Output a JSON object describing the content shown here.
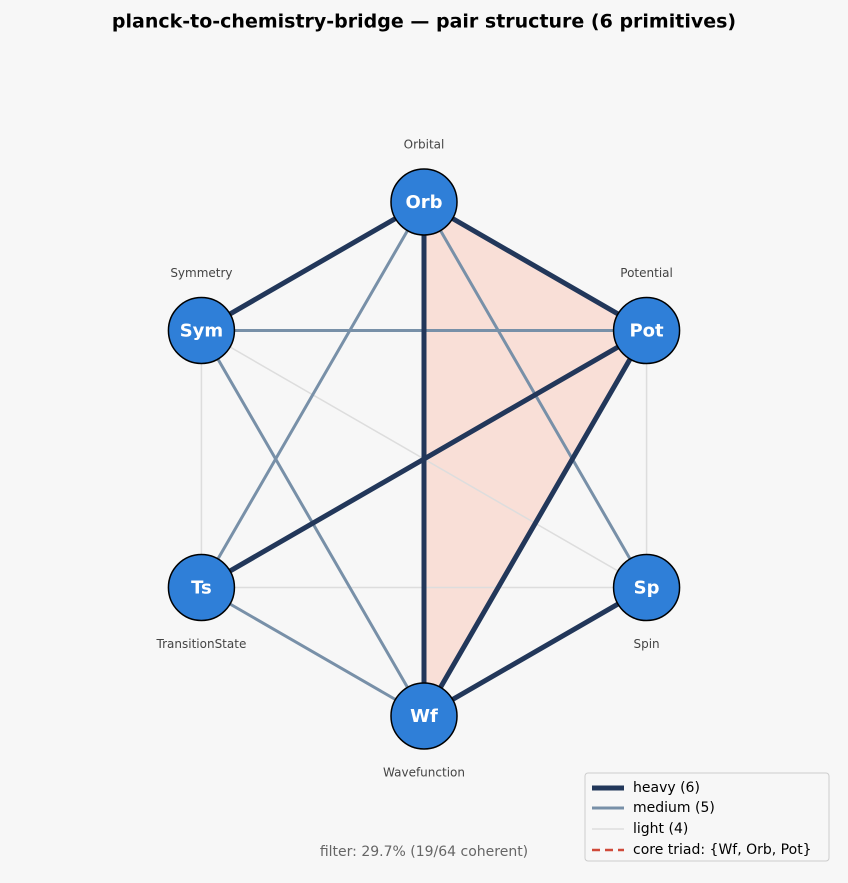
{
  "title": "planck-to-chemistry-bridge — pair structure  (6 primitives)",
  "nodes": [
    {
      "abbr": "Orb",
      "label": "Orbital"
    },
    {
      "abbr": "Pot",
      "label": "Potential"
    },
    {
      "abbr": "Sp",
      "label": "Spin"
    },
    {
      "abbr": "Wf",
      "label": "Wavefunction"
    },
    {
      "abbr": "Ts",
      "label": "TransitionState"
    },
    {
      "abbr": "Sym",
      "label": "Symmetry"
    }
  ],
  "edges": [
    {
      "a": "Sym",
      "b": "Ts",
      "weight": "light"
    },
    {
      "a": "Pot",
      "b": "Sp",
      "weight": "light"
    },
    {
      "a": "Sym",
      "b": "Sp",
      "weight": "light"
    },
    {
      "a": "Ts",
      "b": "Sp",
      "weight": "light"
    },
    {
      "a": "Orb",
      "b": "Ts",
      "weight": "medium"
    },
    {
      "a": "Orb",
      "b": "Sp",
      "weight": "medium"
    },
    {
      "a": "Sym",
      "b": "Pot",
      "weight": "medium"
    },
    {
      "a": "Sym",
      "b": "Wf",
      "weight": "medium"
    },
    {
      "a": "Ts",
      "b": "Wf",
      "weight": "medium"
    },
    {
      "a": "Orb",
      "b": "Sym",
      "weight": "heavy"
    },
    {
      "a": "Orb",
      "b": "Pot",
      "weight": "heavy"
    },
    {
      "a": "Orb",
      "b": "Wf",
      "weight": "heavy"
    },
    {
      "a": "Pot",
      "b": "Ts",
      "weight": "heavy"
    },
    {
      "a": "Pot",
      "b": "Wf",
      "weight": "heavy"
    },
    {
      "a": "Wf",
      "b": "Sp",
      "weight": "heavy"
    }
  ],
  "core_triad": [
    "Wf",
    "Orb",
    "Pot"
  ],
  "legend": [
    "heavy (6)",
    "medium (5)",
    "light (4)",
    "core triad: {Wf, Orb, Pot}"
  ],
  "footer": "filter: 29.7%  (19/64 coherent)"
}
